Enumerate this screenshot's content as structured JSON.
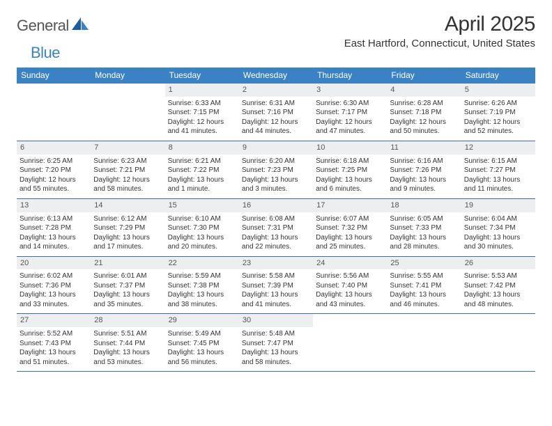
{
  "logo": {
    "part1": "General",
    "part2": "Blue"
  },
  "title": "April 2025",
  "location": "East Hartford, Connecticut, United States",
  "header_bg": "#3b82c4",
  "rule_color": "#3b6fa0",
  "daynum_bg": "#eceef0",
  "weekdays": [
    "Sunday",
    "Monday",
    "Tuesday",
    "Wednesday",
    "Thursday",
    "Friday",
    "Saturday"
  ],
  "weeks": [
    [
      null,
      null,
      {
        "n": "1",
        "sunrise": "Sunrise: 6:33 AM",
        "sunset": "Sunset: 7:15 PM",
        "daylight": "Daylight: 12 hours and 41 minutes."
      },
      {
        "n": "2",
        "sunrise": "Sunrise: 6:31 AM",
        "sunset": "Sunset: 7:16 PM",
        "daylight": "Daylight: 12 hours and 44 minutes."
      },
      {
        "n": "3",
        "sunrise": "Sunrise: 6:30 AM",
        "sunset": "Sunset: 7:17 PM",
        "daylight": "Daylight: 12 hours and 47 minutes."
      },
      {
        "n": "4",
        "sunrise": "Sunrise: 6:28 AM",
        "sunset": "Sunset: 7:18 PM",
        "daylight": "Daylight: 12 hours and 50 minutes."
      },
      {
        "n": "5",
        "sunrise": "Sunrise: 6:26 AM",
        "sunset": "Sunset: 7:19 PM",
        "daylight": "Daylight: 12 hours and 52 minutes."
      }
    ],
    [
      {
        "n": "6",
        "sunrise": "Sunrise: 6:25 AM",
        "sunset": "Sunset: 7:20 PM",
        "daylight": "Daylight: 12 hours and 55 minutes."
      },
      {
        "n": "7",
        "sunrise": "Sunrise: 6:23 AM",
        "sunset": "Sunset: 7:21 PM",
        "daylight": "Daylight: 12 hours and 58 minutes."
      },
      {
        "n": "8",
        "sunrise": "Sunrise: 6:21 AM",
        "sunset": "Sunset: 7:22 PM",
        "daylight": "Daylight: 13 hours and 1 minute."
      },
      {
        "n": "9",
        "sunrise": "Sunrise: 6:20 AM",
        "sunset": "Sunset: 7:23 PM",
        "daylight": "Daylight: 13 hours and 3 minutes."
      },
      {
        "n": "10",
        "sunrise": "Sunrise: 6:18 AM",
        "sunset": "Sunset: 7:25 PM",
        "daylight": "Daylight: 13 hours and 6 minutes."
      },
      {
        "n": "11",
        "sunrise": "Sunrise: 6:16 AM",
        "sunset": "Sunset: 7:26 PM",
        "daylight": "Daylight: 13 hours and 9 minutes."
      },
      {
        "n": "12",
        "sunrise": "Sunrise: 6:15 AM",
        "sunset": "Sunset: 7:27 PM",
        "daylight": "Daylight: 13 hours and 11 minutes."
      }
    ],
    [
      {
        "n": "13",
        "sunrise": "Sunrise: 6:13 AM",
        "sunset": "Sunset: 7:28 PM",
        "daylight": "Daylight: 13 hours and 14 minutes."
      },
      {
        "n": "14",
        "sunrise": "Sunrise: 6:12 AM",
        "sunset": "Sunset: 7:29 PM",
        "daylight": "Daylight: 13 hours and 17 minutes."
      },
      {
        "n": "15",
        "sunrise": "Sunrise: 6:10 AM",
        "sunset": "Sunset: 7:30 PM",
        "daylight": "Daylight: 13 hours and 20 minutes."
      },
      {
        "n": "16",
        "sunrise": "Sunrise: 6:08 AM",
        "sunset": "Sunset: 7:31 PM",
        "daylight": "Daylight: 13 hours and 22 minutes."
      },
      {
        "n": "17",
        "sunrise": "Sunrise: 6:07 AM",
        "sunset": "Sunset: 7:32 PM",
        "daylight": "Daylight: 13 hours and 25 minutes."
      },
      {
        "n": "18",
        "sunrise": "Sunrise: 6:05 AM",
        "sunset": "Sunset: 7:33 PM",
        "daylight": "Daylight: 13 hours and 28 minutes."
      },
      {
        "n": "19",
        "sunrise": "Sunrise: 6:04 AM",
        "sunset": "Sunset: 7:34 PM",
        "daylight": "Daylight: 13 hours and 30 minutes."
      }
    ],
    [
      {
        "n": "20",
        "sunrise": "Sunrise: 6:02 AM",
        "sunset": "Sunset: 7:36 PM",
        "daylight": "Daylight: 13 hours and 33 minutes."
      },
      {
        "n": "21",
        "sunrise": "Sunrise: 6:01 AM",
        "sunset": "Sunset: 7:37 PM",
        "daylight": "Daylight: 13 hours and 35 minutes."
      },
      {
        "n": "22",
        "sunrise": "Sunrise: 5:59 AM",
        "sunset": "Sunset: 7:38 PM",
        "daylight": "Daylight: 13 hours and 38 minutes."
      },
      {
        "n": "23",
        "sunrise": "Sunrise: 5:58 AM",
        "sunset": "Sunset: 7:39 PM",
        "daylight": "Daylight: 13 hours and 41 minutes."
      },
      {
        "n": "24",
        "sunrise": "Sunrise: 5:56 AM",
        "sunset": "Sunset: 7:40 PM",
        "daylight": "Daylight: 13 hours and 43 minutes."
      },
      {
        "n": "25",
        "sunrise": "Sunrise: 5:55 AM",
        "sunset": "Sunset: 7:41 PM",
        "daylight": "Daylight: 13 hours and 46 minutes."
      },
      {
        "n": "26",
        "sunrise": "Sunrise: 5:53 AM",
        "sunset": "Sunset: 7:42 PM",
        "daylight": "Daylight: 13 hours and 48 minutes."
      }
    ],
    [
      {
        "n": "27",
        "sunrise": "Sunrise: 5:52 AM",
        "sunset": "Sunset: 7:43 PM",
        "daylight": "Daylight: 13 hours and 51 minutes."
      },
      {
        "n": "28",
        "sunrise": "Sunrise: 5:51 AM",
        "sunset": "Sunset: 7:44 PM",
        "daylight": "Daylight: 13 hours and 53 minutes."
      },
      {
        "n": "29",
        "sunrise": "Sunrise: 5:49 AM",
        "sunset": "Sunset: 7:45 PM",
        "daylight": "Daylight: 13 hours and 56 minutes."
      },
      {
        "n": "30",
        "sunrise": "Sunrise: 5:48 AM",
        "sunset": "Sunset: 7:47 PM",
        "daylight": "Daylight: 13 hours and 58 minutes."
      },
      null,
      null,
      null
    ]
  ]
}
